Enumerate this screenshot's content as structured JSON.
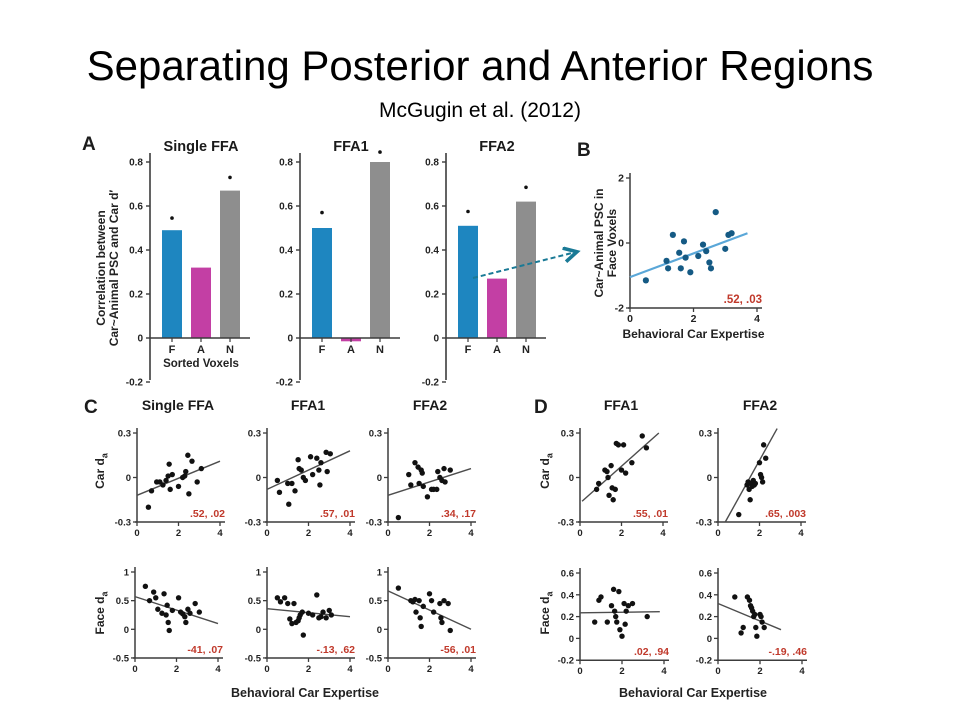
{
  "slide": {
    "title": "Separating Posterior and Anterior Regions",
    "subtitle": "McGugin et al. (2012)"
  },
  "figure": {
    "panel_a": {
      "label": "A",
      "ylabel_line1": "Correlation between",
      "ylabel_line2": "Car~Animal PSC and Car d′",
      "xlabel": "Sorted Voxels"
    },
    "panel_b": {
      "label": "B",
      "ylabel_line1": "Car~Animal PSC in",
      "ylabel_line2": "Face Voxels",
      "xlabel": "Behavioral Car Expertise"
    },
    "panel_c": {
      "label": "C",
      "col_titles": [
        "Single FFA",
        "FFA1",
        "FFA2"
      ],
      "ylabel_row1": "Car d",
      "ylabel_row2": "Face d",
      "ylabel_sub": "a",
      "xlabel": "Behavioral Car Expertise"
    },
    "panel_d": {
      "label": "D",
      "col_titles": [
        "FFA1",
        "FFA2"
      ],
      "ylabel_row1": "Car d",
      "ylabel_row2": "Face d",
      "ylabel_sub": "a",
      "xlabel": "Behavioral Car Expertise"
    }
  },
  "colors": {
    "bar_face": "#1e86c0",
    "bar_animal": "#c33fa4",
    "bar_nonsorted": "#8e8e8e",
    "b_dot": "#155a84",
    "b_line": "#5aa7d8",
    "arrow_teal": "#1a7a96",
    "annotation_red": "#c0392b",
    "scatter_dot": "#111111",
    "trend_gray": "#4d4d4d",
    "axis_gray": "#3c3c3c"
  },
  "chart_data": [
    {
      "id": "a_single_ffa",
      "type": "bar",
      "title": "Single FFA",
      "categories": [
        "F",
        "A",
        "N"
      ],
      "values": [
        0.49,
        0.32,
        0.67
      ],
      "significance_y": [
        0.545,
        null,
        0.73
      ],
      "ylim": [
        -0.2,
        0.8
      ],
      "yticks": [
        0.8,
        0.6,
        0.4,
        0.2,
        0,
        -0.2
      ],
      "xlabel": "Sorted Voxels"
    },
    {
      "id": "a_ffa1",
      "type": "bar",
      "title": "FFA1",
      "categories": [
        "F",
        "A",
        "N"
      ],
      "values": [
        0.5,
        -0.015,
        0.8
      ],
      "significance_y": [
        0.57,
        null,
        0.845
      ],
      "ylim": [
        -0.2,
        0.8
      ],
      "yticks": [
        0.8,
        0.6,
        0.4,
        0.2,
        0,
        -0.2
      ],
      "xlabel": ""
    },
    {
      "id": "a_ffa2",
      "type": "bar",
      "title": "FFA2",
      "categories": [
        "F",
        "A",
        "N"
      ],
      "values": [
        0.51,
        0.27,
        0.62
      ],
      "significance_y": [
        0.575,
        null,
        0.685
      ],
      "ylim": [
        -0.2,
        0.8
      ],
      "yticks": [
        0.8,
        0.6,
        0.4,
        0.2,
        0,
        -0.2
      ],
      "xlabel": ""
    },
    {
      "id": "b_expertise",
      "type": "scatter",
      "xlabel": "Behavioral Car Expertise",
      "xlim": [
        0,
        4
      ],
      "ylim": [
        -2,
        2
      ],
      "xticks": [
        0,
        2,
        4
      ],
      "yticks": [
        2,
        0,
        -2
      ],
      "annotation": ".52, .03",
      "trend": [
        [
          0,
          -1.05
        ],
        [
          3.7,
          0.3
        ]
      ],
      "points": [
        [
          0.5,
          -1.15
        ],
        [
          1.15,
          -0.55
        ],
        [
          1.2,
          -0.78
        ],
        [
          1.35,
          0.25
        ],
        [
          1.55,
          -0.3
        ],
        [
          1.6,
          -0.78
        ],
        [
          1.7,
          0.05
        ],
        [
          1.75,
          -0.45
        ],
        [
          1.9,
          -0.9
        ],
        [
          2.15,
          -0.4
        ],
        [
          2.3,
          -0.05
        ],
        [
          2.4,
          -0.25
        ],
        [
          2.5,
          -0.6
        ],
        [
          2.55,
          -0.78
        ],
        [
          2.7,
          0.95
        ],
        [
          3.0,
          -0.18
        ],
        [
          3.1,
          0.25
        ],
        [
          3.2,
          0.3
        ]
      ]
    },
    {
      "id": "c_car_single",
      "type": "scatter",
      "xlim": [
        0,
        4
      ],
      "ylim": [
        -0.3,
        0.3
      ],
      "xticks": [
        0,
        2,
        4
      ],
      "yticks": [
        0.3,
        0,
        -0.3
      ],
      "annotation": ".52, .02",
      "trend": [
        [
          0,
          -0.12
        ],
        [
          4,
          0.11
        ]
      ],
      "points": [
        [
          0.55,
          -0.2
        ],
        [
          0.7,
          -0.09
        ],
        [
          0.95,
          -0.03
        ],
        [
          1.1,
          -0.03
        ],
        [
          1.25,
          -0.05
        ],
        [
          1.4,
          -0.02
        ],
        [
          1.5,
          0.01
        ],
        [
          1.55,
          0.09
        ],
        [
          1.6,
          -0.08
        ],
        [
          1.7,
          0.02
        ],
        [
          2.0,
          -0.06
        ],
        [
          2.2,
          0.0
        ],
        [
          2.3,
          0.01
        ],
        [
          2.35,
          0.04
        ],
        [
          2.45,
          0.15
        ],
        [
          2.5,
          -0.11
        ],
        [
          2.65,
          0.11
        ],
        [
          2.9,
          -0.03
        ],
        [
          3.1,
          0.06
        ]
      ]
    },
    {
      "id": "c_car_ffa1",
      "type": "scatter",
      "xlim": [
        0,
        4
      ],
      "ylim": [
        -0.3,
        0.3
      ],
      "xticks": [
        0,
        2,
        4
      ],
      "yticks": [
        0.3,
        0,
        -0.3
      ],
      "annotation": ".57, .01",
      "trend": [
        [
          0,
          -0.08
        ],
        [
          4,
          0.18
        ]
      ],
      "points": [
        [
          0.5,
          -0.02
        ],
        [
          0.6,
          -0.1
        ],
        [
          1.0,
          -0.04
        ],
        [
          1.05,
          -0.18
        ],
        [
          1.2,
          -0.04
        ],
        [
          1.35,
          -0.09
        ],
        [
          1.5,
          0.12
        ],
        [
          1.55,
          0.06
        ],
        [
          1.65,
          0.05
        ],
        [
          1.75,
          0.0
        ],
        [
          1.85,
          -0.02
        ],
        [
          2.1,
          0.14
        ],
        [
          2.2,
          0.02
        ],
        [
          2.4,
          0.13
        ],
        [
          2.5,
          0.05
        ],
        [
          2.55,
          -0.05
        ],
        [
          2.6,
          0.1
        ],
        [
          2.85,
          0.17
        ],
        [
          2.9,
          0.04
        ],
        [
          3.05,
          0.16
        ]
      ]
    },
    {
      "id": "c_car_ffa2",
      "type": "scatter",
      "xlim": [
        0,
        4
      ],
      "ylim": [
        -0.3,
        0.3
      ],
      "xticks": [
        0,
        2,
        4
      ],
      "yticks": [
        0.3,
        0,
        -0.3
      ],
      "annotation": ".34, .17",
      "trend": [
        [
          0,
          -0.12
        ],
        [
          4,
          0.06
        ]
      ],
      "points": [
        [
          0.5,
          -0.27
        ],
        [
          1.0,
          0.02
        ],
        [
          1.1,
          -0.05
        ],
        [
          1.3,
          0.1
        ],
        [
          1.45,
          0.07
        ],
        [
          1.5,
          -0.04
        ],
        [
          1.6,
          0.05
        ],
        [
          1.65,
          0.03
        ],
        [
          1.7,
          -0.06
        ],
        [
          1.9,
          -0.13
        ],
        [
          2.1,
          -0.08
        ],
        [
          2.2,
          -0.08
        ],
        [
          2.35,
          -0.08
        ],
        [
          2.4,
          0.04
        ],
        [
          2.5,
          0.0
        ],
        [
          2.6,
          -0.02
        ],
        [
          2.7,
          0.06
        ],
        [
          2.75,
          -0.03
        ],
        [
          3.0,
          0.05
        ]
      ]
    },
    {
      "id": "c_face_single",
      "type": "scatter",
      "xlim": [
        0,
        4
      ],
      "ylim": [
        -0.5,
        1
      ],
      "xticks": [
        0,
        2,
        4
      ],
      "yticks": [
        1,
        0.5,
        0,
        -0.5
      ],
      "annotation": "-41, .07",
      "trend": [
        [
          0,
          0.57
        ],
        [
          4,
          0.1
        ]
      ],
      "points": [
        [
          0.5,
          0.75
        ],
        [
          0.7,
          0.5
        ],
        [
          0.9,
          0.65
        ],
        [
          1.0,
          0.55
        ],
        [
          1.1,
          0.35
        ],
        [
          1.3,
          0.28
        ],
        [
          1.4,
          0.62
        ],
        [
          1.5,
          0.25
        ],
        [
          1.55,
          0.42
        ],
        [
          1.6,
          0.12
        ],
        [
          1.65,
          -0.02
        ],
        [
          1.8,
          0.33
        ],
        [
          2.1,
          0.55
        ],
        [
          2.2,
          0.3
        ],
        [
          2.3,
          0.27
        ],
        [
          2.4,
          0.22
        ],
        [
          2.45,
          0.12
        ],
        [
          2.55,
          0.35
        ],
        [
          2.65,
          0.28
        ],
        [
          2.9,
          0.45
        ],
        [
          3.1,
          0.3
        ]
      ]
    },
    {
      "id": "c_face_ffa1",
      "type": "scatter",
      "xlim": [
        0,
        4
      ],
      "ylim": [
        -0.5,
        1
      ],
      "xticks": [
        0,
        2,
        4
      ],
      "yticks": [
        1,
        0.5,
        0,
        -0.5
      ],
      "annotation": "-.13, .62",
      "trend": [
        [
          0,
          0.36
        ],
        [
          4,
          0.22
        ]
      ],
      "points": [
        [
          0.5,
          0.55
        ],
        [
          0.65,
          0.48
        ],
        [
          0.85,
          0.55
        ],
        [
          1.0,
          0.45
        ],
        [
          1.1,
          0.18
        ],
        [
          1.2,
          0.1
        ],
        [
          1.3,
          0.45
        ],
        [
          1.4,
          0.12
        ],
        [
          1.5,
          0.15
        ],
        [
          1.55,
          0.2
        ],
        [
          1.6,
          0.25
        ],
        [
          1.7,
          0.3
        ],
        [
          1.75,
          -0.1
        ],
        [
          2.0,
          0.28
        ],
        [
          2.2,
          0.25
        ],
        [
          2.4,
          0.6
        ],
        [
          2.5,
          0.2
        ],
        [
          2.6,
          0.22
        ],
        [
          2.7,
          0.3
        ],
        [
          2.85,
          0.2
        ],
        [
          3.0,
          0.33
        ],
        [
          3.1,
          0.25
        ]
      ]
    },
    {
      "id": "c_face_ffa2",
      "type": "scatter",
      "xlim": [
        0,
        4
      ],
      "ylim": [
        -0.5,
        1
      ],
      "xticks": [
        0,
        2,
        4
      ],
      "yticks": [
        1,
        0.5,
        0,
        -0.5
      ],
      "annotation": "-56, .01",
      "trend": [
        [
          0,
          0.67
        ],
        [
          4,
          0.0
        ]
      ],
      "points": [
        [
          0.5,
          0.72
        ],
        [
          1.1,
          0.5
        ],
        [
          1.2,
          0.48
        ],
        [
          1.3,
          0.52
        ],
        [
          1.35,
          0.3
        ],
        [
          1.5,
          0.5
        ],
        [
          1.55,
          0.2
        ],
        [
          1.6,
          0.05
        ],
        [
          1.7,
          0.4
        ],
        [
          2.0,
          0.62
        ],
        [
          2.1,
          0.5
        ],
        [
          2.2,
          0.3
        ],
        [
          2.5,
          0.45
        ],
        [
          2.55,
          0.2
        ],
        [
          2.6,
          0.12
        ],
        [
          2.7,
          0.5
        ],
        [
          2.9,
          0.45
        ],
        [
          3.0,
          -0.02
        ]
      ]
    },
    {
      "id": "d_car_ffa1",
      "type": "scatter",
      "xlim": [
        0,
        4
      ],
      "ylim": [
        -0.3,
        0.3
      ],
      "xticks": [
        0,
        2,
        4
      ],
      "yticks": [
        0.3,
        0,
        -0.3
      ],
      "annotation": ".55, .01",
      "trend": [
        [
          0.1,
          -0.16
        ],
        [
          3.8,
          0.3
        ]
      ],
      "points": [
        [
          0.8,
          -0.08
        ],
        [
          0.9,
          -0.04
        ],
        [
          1.2,
          0.05
        ],
        [
          1.3,
          0.04
        ],
        [
          1.35,
          0.0
        ],
        [
          1.4,
          -0.12
        ],
        [
          1.5,
          0.08
        ],
        [
          1.55,
          -0.07
        ],
        [
          1.6,
          -0.15
        ],
        [
          1.7,
          -0.08
        ],
        [
          1.75,
          0.23
        ],
        [
          1.85,
          0.22
        ],
        [
          2.0,
          0.05
        ],
        [
          2.1,
          0.22
        ],
        [
          2.2,
          0.03
        ],
        [
          2.5,
          0.1
        ],
        [
          3.0,
          0.28
        ],
        [
          3.2,
          0.2
        ]
      ]
    },
    {
      "id": "d_car_ffa2",
      "type": "scatter",
      "xlim": [
        0,
        4
      ],
      "ylim": [
        -0.3,
        0.3
      ],
      "xticks": [
        0,
        2,
        4
      ],
      "yticks": [
        0.3,
        0,
        -0.3
      ],
      "annotation": ".65, .003",
      "trend": [
        [
          0.35,
          -0.3
        ],
        [
          2.85,
          0.33
        ]
      ],
      "points": [
        [
          1.0,
          -0.25
        ],
        [
          1.4,
          -0.05
        ],
        [
          1.45,
          -0.03
        ],
        [
          1.5,
          -0.08
        ],
        [
          1.55,
          -0.15
        ],
        [
          1.6,
          -0.04
        ],
        [
          1.65,
          -0.06
        ],
        [
          1.7,
          -0.02
        ],
        [
          1.75,
          -0.05
        ],
        [
          1.8,
          -0.04
        ],
        [
          2.0,
          0.1
        ],
        [
          2.05,
          0.02
        ],
        [
          2.1,
          0.0
        ],
        [
          2.15,
          -0.03
        ],
        [
          2.2,
          0.22
        ],
        [
          2.3,
          0.13
        ]
      ]
    },
    {
      "id": "d_face_ffa1",
      "type": "scatter",
      "xlim": [
        0,
        4
      ],
      "ylim": [
        -0.2,
        0.6
      ],
      "xticks": [
        0,
        2,
        4
      ],
      "yticks": [
        0.6,
        0.4,
        0.2,
        0,
        -0.2
      ],
      "annotation": ".02, .94",
      "trend": [
        [
          0,
          0.235
        ],
        [
          3.8,
          0.245
        ]
      ],
      "points": [
        [
          0.7,
          0.15
        ],
        [
          0.9,
          0.35
        ],
        [
          1.0,
          0.38
        ],
        [
          1.3,
          0.15
        ],
        [
          1.5,
          0.3
        ],
        [
          1.6,
          0.45
        ],
        [
          1.65,
          0.25
        ],
        [
          1.7,
          0.2
        ],
        [
          1.75,
          0.15
        ],
        [
          1.85,
          0.43
        ],
        [
          1.9,
          0.08
        ],
        [
          2.0,
          0.02
        ],
        [
          2.1,
          0.32
        ],
        [
          2.15,
          0.13
        ],
        [
          2.2,
          0.25
        ],
        [
          2.3,
          0.3
        ],
        [
          2.5,
          0.32
        ],
        [
          3.2,
          0.2
        ]
      ]
    },
    {
      "id": "d_face_ffa2",
      "type": "scatter",
      "xlim": [
        0,
        4
      ],
      "ylim": [
        -0.2,
        0.6
      ],
      "xticks": [
        0,
        2,
        4
      ],
      "yticks": [
        0.6,
        0.4,
        0.2,
        0,
        -0.2
      ],
      "annotation": "-.19, .46",
      "trend": [
        [
          0,
          0.32
        ],
        [
          3.0,
          0.08
        ]
      ],
      "points": [
        [
          0.8,
          0.38
        ],
        [
          1.1,
          0.05
        ],
        [
          1.2,
          0.1
        ],
        [
          1.4,
          0.38
        ],
        [
          1.5,
          0.35
        ],
        [
          1.55,
          0.3
        ],
        [
          1.6,
          0.28
        ],
        [
          1.65,
          0.25
        ],
        [
          1.7,
          0.2
        ],
        [
          1.75,
          0.22
        ],
        [
          1.8,
          0.1
        ],
        [
          1.85,
          0.02
        ],
        [
          2.0,
          0.22
        ],
        [
          2.05,
          0.2
        ],
        [
          2.1,
          0.15
        ],
        [
          2.2,
          0.1
        ]
      ]
    }
  ]
}
